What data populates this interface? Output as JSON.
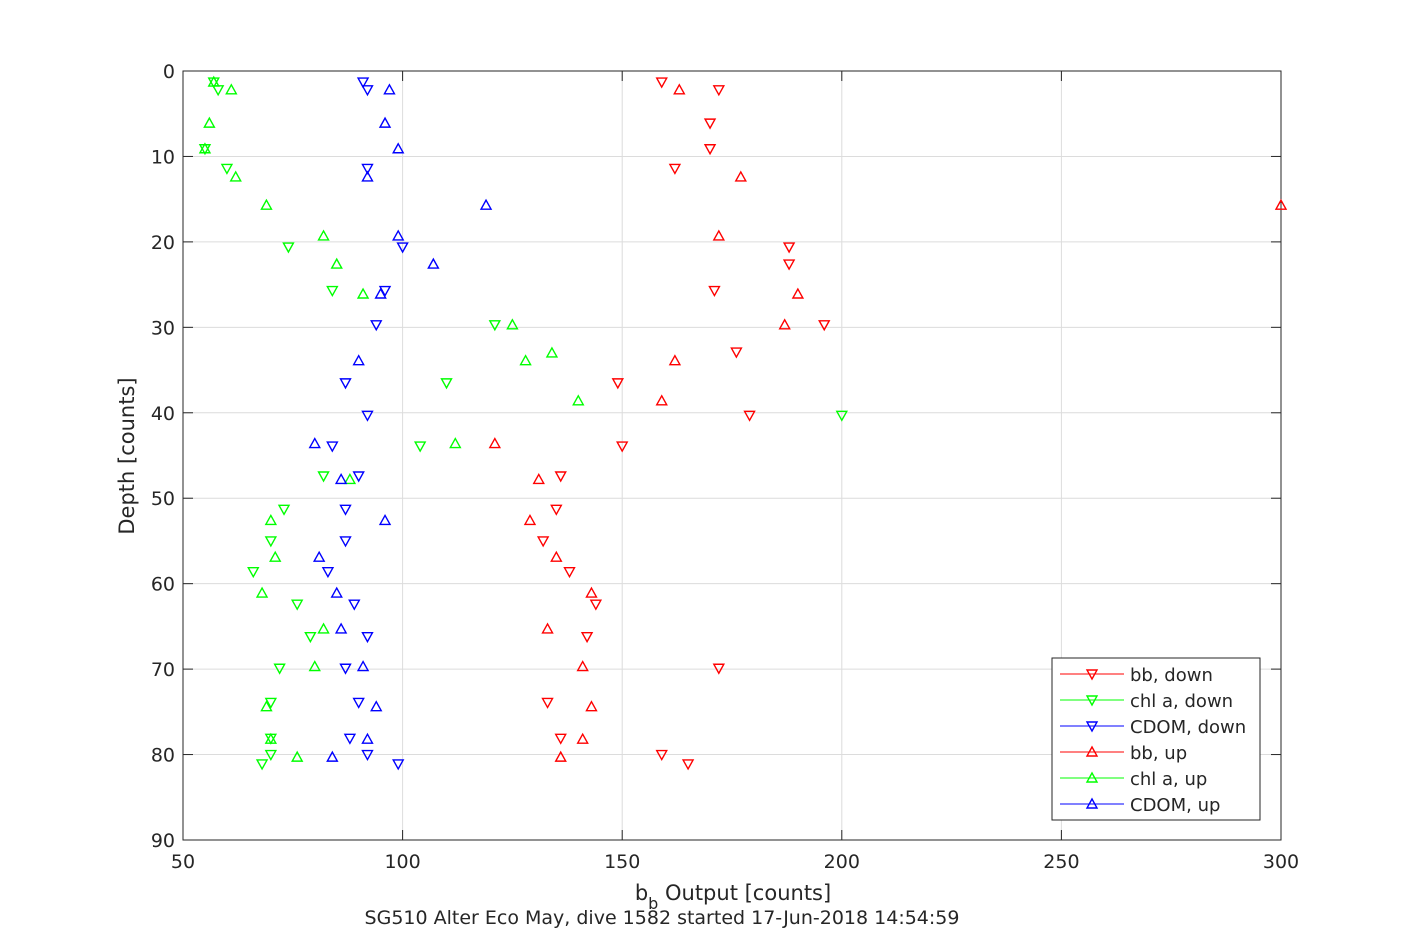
{
  "chart_data": {
    "type": "scatter",
    "title": "SG510 Alter Eco May, dive 1582 started 17-Jun-2018 14:54:59",
    "xlabel_main": "b",
    "xlabel_sub": "b",
    "xlabel_rest": " Output [counts]",
    "ylabel": "Depth [counts]",
    "xlim": [
      50,
      300
    ],
    "ylim": [
      0,
      90
    ],
    "y_reversed": true,
    "grid": true,
    "xticks": [
      "50",
      "100",
      "150",
      "200",
      "250",
      "300"
    ],
    "yticks": [
      "0",
      "10",
      "20",
      "30",
      "40",
      "50",
      "60",
      "70",
      "80",
      "90"
    ],
    "legend_position": "bottom-right",
    "series": [
      {
        "name": "bb, down",
        "color": "#ff0000",
        "marker": "triangle-down",
        "x": [
          159,
          172,
          170,
          170,
          162,
          188,
          188,
          171,
          196,
          176,
          149,
          179,
          150,
          136,
          135,
          132,
          138,
          144,
          142,
          172,
          133,
          136,
          159,
          165
        ],
        "y": [
          1.3,
          2.2,
          6.1,
          9.1,
          11.4,
          20.6,
          22.6,
          25.7,
          29.7,
          32.9,
          36.5,
          40.3,
          43.9,
          47.4,
          51.3,
          55.0,
          58.6,
          62.4,
          66.2,
          69.9,
          73.9,
          78.1,
          80.0,
          81.1
        ]
      },
      {
        "name": "chl a, down",
        "color": "#00ff00",
        "marker": "triangle-down",
        "x": [
          57,
          58,
          55,
          60,
          74,
          84,
          121,
          110,
          104,
          82,
          73,
          70,
          66,
          76,
          79,
          72,
          70,
          70,
          70,
          68,
          200
        ],
        "y": [
          1.3,
          2.2,
          9.1,
          11.4,
          20.6,
          25.7,
          29.7,
          36.5,
          43.9,
          47.4,
          51.3,
          55.0,
          58.6,
          62.4,
          66.2,
          69.9,
          73.9,
          78.1,
          80.0,
          81.1,
          40.3
        ]
      },
      {
        "name": "CDOM, down",
        "color": "#0000ff",
        "marker": "triangle-down",
        "x": [
          91,
          92,
          92,
          100,
          96,
          94,
          87,
          92,
          84,
          90,
          87,
          87,
          83,
          89,
          92,
          87,
          90,
          88,
          92,
          99
        ],
        "y": [
          1.3,
          2.2,
          11.4,
          20.6,
          25.7,
          29.7,
          36.5,
          40.3,
          43.9,
          47.4,
          51.3,
          55.0,
          58.6,
          62.4,
          66.2,
          69.9,
          73.9,
          78.1,
          80.0,
          81.1
        ]
      },
      {
        "name": "bb, up",
        "color": "#ff0000",
        "marker": "triangle-up",
        "x": [
          163,
          177,
          300,
          172,
          190,
          187,
          162,
          159,
          121,
          131,
          129,
          135,
          143,
          133,
          141,
          143,
          141,
          136
        ],
        "y": [
          2.2,
          12.4,
          15.7,
          19.3,
          26.1,
          29.7,
          33.9,
          38.6,
          43.6,
          47.8,
          52.6,
          56.9,
          61.1,
          65.3,
          69.7,
          74.4,
          78.2,
          80.3
        ]
      },
      {
        "name": "chl a, up",
        "color": "#00ff00",
        "marker": "triangle-up",
        "x": [
          57,
          61,
          56,
          55,
          62,
          69,
          82,
          85,
          91,
          125,
          134,
          128,
          140,
          112,
          88,
          70,
          71,
          68,
          82,
          80,
          69,
          70,
          76
        ],
        "y": [
          1.3,
          2.2,
          6.1,
          9.1,
          12.4,
          15.7,
          19.3,
          22.6,
          26.1,
          29.7,
          33.0,
          33.9,
          38.6,
          43.6,
          47.8,
          52.6,
          56.9,
          61.1,
          65.3,
          69.7,
          74.4,
          78.2,
          80.3
        ]
      },
      {
        "name": "CDOM, up",
        "color": "#0000ff",
        "marker": "triangle-up",
        "x": [
          97,
          96,
          99,
          92,
          119,
          99,
          107,
          95,
          90,
          80,
          86,
          96,
          81,
          85,
          86,
          91,
          94,
          92,
          84
        ],
        "y": [
          2.2,
          6.1,
          9.1,
          12.4,
          15.7,
          19.3,
          22.6,
          26.1,
          33.9,
          43.6,
          47.8,
          52.6,
          56.9,
          61.1,
          65.3,
          69.7,
          74.4,
          78.2,
          80.3
        ]
      }
    ]
  }
}
